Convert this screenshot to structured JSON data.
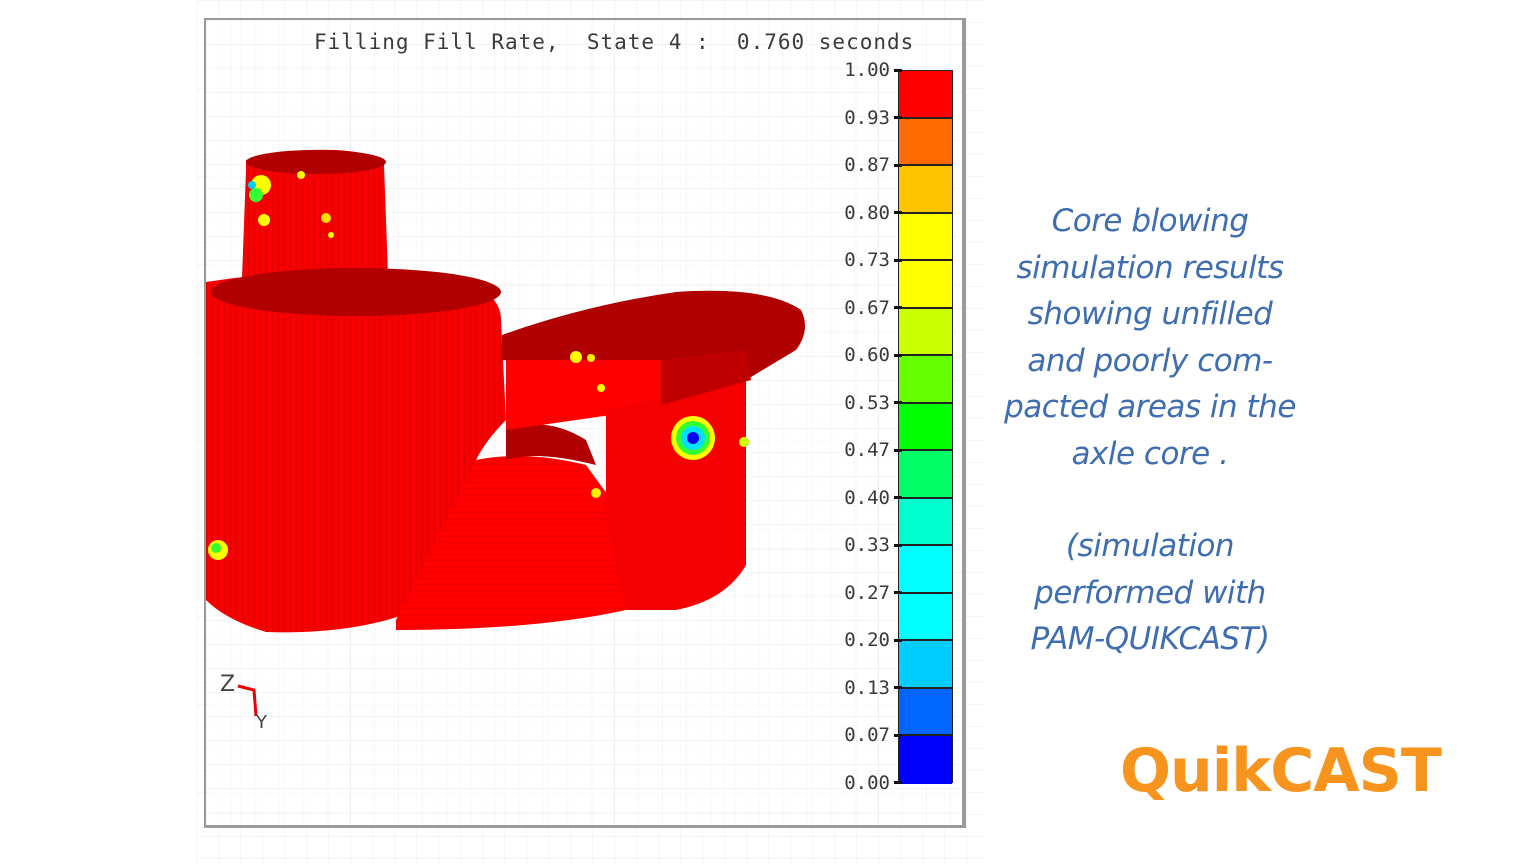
{
  "simulation": {
    "title": "Filling Fill Rate,  State 4 :  0.760 seconds",
    "quantity": "Filling Fill Rate",
    "state": "State 4",
    "time": "0.760 seconds",
    "axes": {
      "z_label": "Z",
      "y_label": "Y"
    },
    "model_colors": {
      "full": "#ff0000",
      "shaded": "#b00000",
      "partial_yellow": "#ffff00",
      "partial_green": "#33ff33",
      "partial_cyan": "#00e0ff",
      "empty_blue": "#0000ee"
    }
  },
  "legend": {
    "ticks": [
      "1.00",
      "0.93",
      "0.87",
      "0.80",
      "0.73",
      "0.67",
      "0.60",
      "0.53",
      "0.47",
      "0.40",
      "0.33",
      "0.27",
      "0.20",
      "0.13",
      "0.07",
      "0.00"
    ],
    "colors": [
      "#ff0000",
      "#ff6a00",
      "#ffc400",
      "#ffff00",
      "#ffff00",
      "#ccff00",
      "#66ff00",
      "#00ff00",
      "#00ff66",
      "#00ffcc",
      "#00ffff",
      "#00ffff",
      "#00ccff",
      "#0066ff",
      "#0000ff"
    ]
  },
  "caption": {
    "lines": [
      "Core blowing",
      "simulation results",
      "showing unfilled",
      "and poorly com-",
      "pacted areas in the",
      "axle core ."
    ],
    "note_lines": [
      "(simulation",
      "performed with",
      "PAM-QUIKCAST)"
    ],
    "color": "#3e6db0"
  },
  "brand": {
    "name": "QuikCAST",
    "color": "#f7941d"
  }
}
